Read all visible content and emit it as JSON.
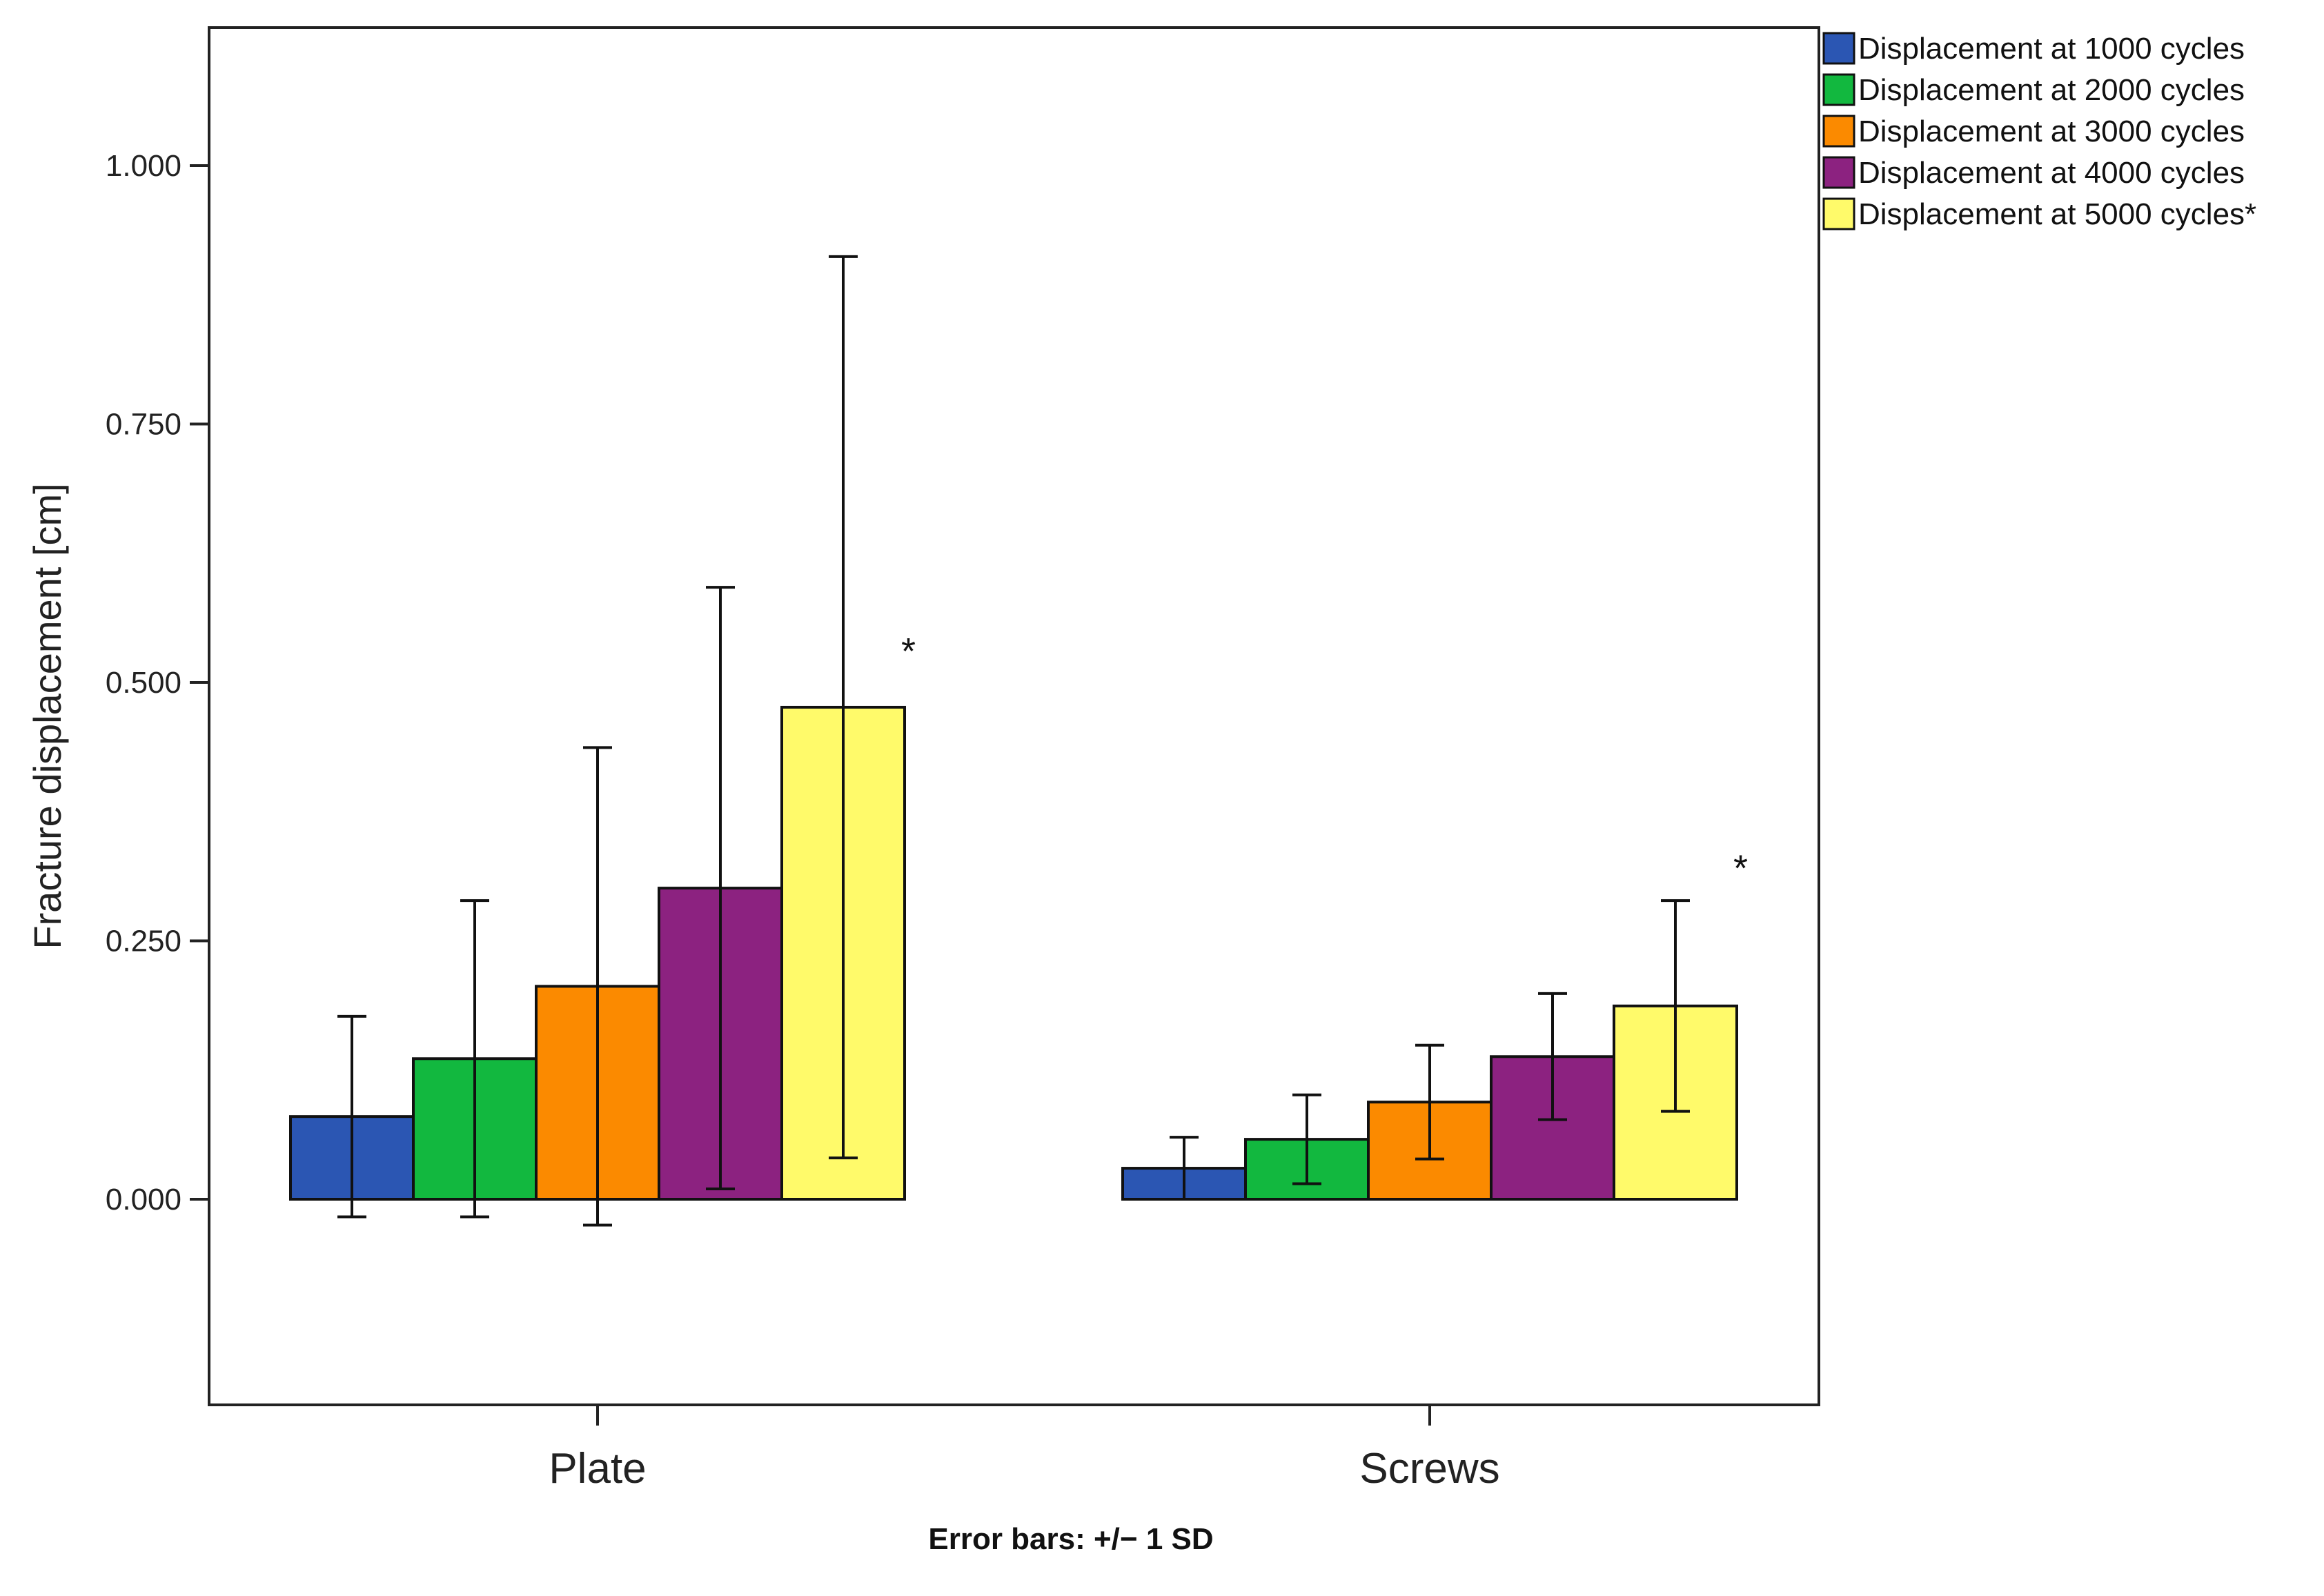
{
  "chart_data": {
    "type": "bar",
    "categories": [
      "Plate",
      "Screws"
    ],
    "ylabel": "Fracture displacement [cm]",
    "xlabel": "",
    "ylim": [
      -0.2,
      1.14
    ],
    "yticks": [
      0.0,
      0.25,
      0.5,
      0.75,
      1.0
    ],
    "ytick_labels": [
      "0.000",
      "0.250",
      "0.500",
      "0.750",
      "1.000"
    ],
    "series": [
      {
        "name": "Displacement at 1000 cycles",
        "color": "#2B56B3",
        "values": [
          0.08,
          0.03
        ],
        "sd": [
          0.097,
          0.03
        ]
      },
      {
        "name": "Displacement at 2000 cycles",
        "color": "#12B83F",
        "values": [
          0.136,
          0.058
        ],
        "sd": [
          0.153,
          0.043
        ]
      },
      {
        "name": "Displacement at 3000 cycles",
        "color": "#FB8A00",
        "values": [
          0.206,
          0.094
        ],
        "sd": [
          0.231,
          0.055
        ]
      },
      {
        "name": "Displacement at 4000 cycles",
        "color": "#8C2280",
        "values": [
          0.301,
          0.138
        ],
        "sd": [
          0.291,
          0.061
        ]
      },
      {
        "name": "Displacement at 5000 cycles*",
        "color": "#FFFA6A",
        "values": [
          0.476,
          0.187
        ],
        "sd": [
          0.436,
          0.102
        ]
      }
    ],
    "annotations": [
      {
        "text": "*",
        "category": "Plate",
        "y": 0.53
      },
      {
        "text": "*",
        "category": "Screws",
        "y": 0.32
      }
    ],
    "error_bars_note": "Error bars: +/−   1 SD",
    "legend_position": "top-right",
    "grid": false
  }
}
